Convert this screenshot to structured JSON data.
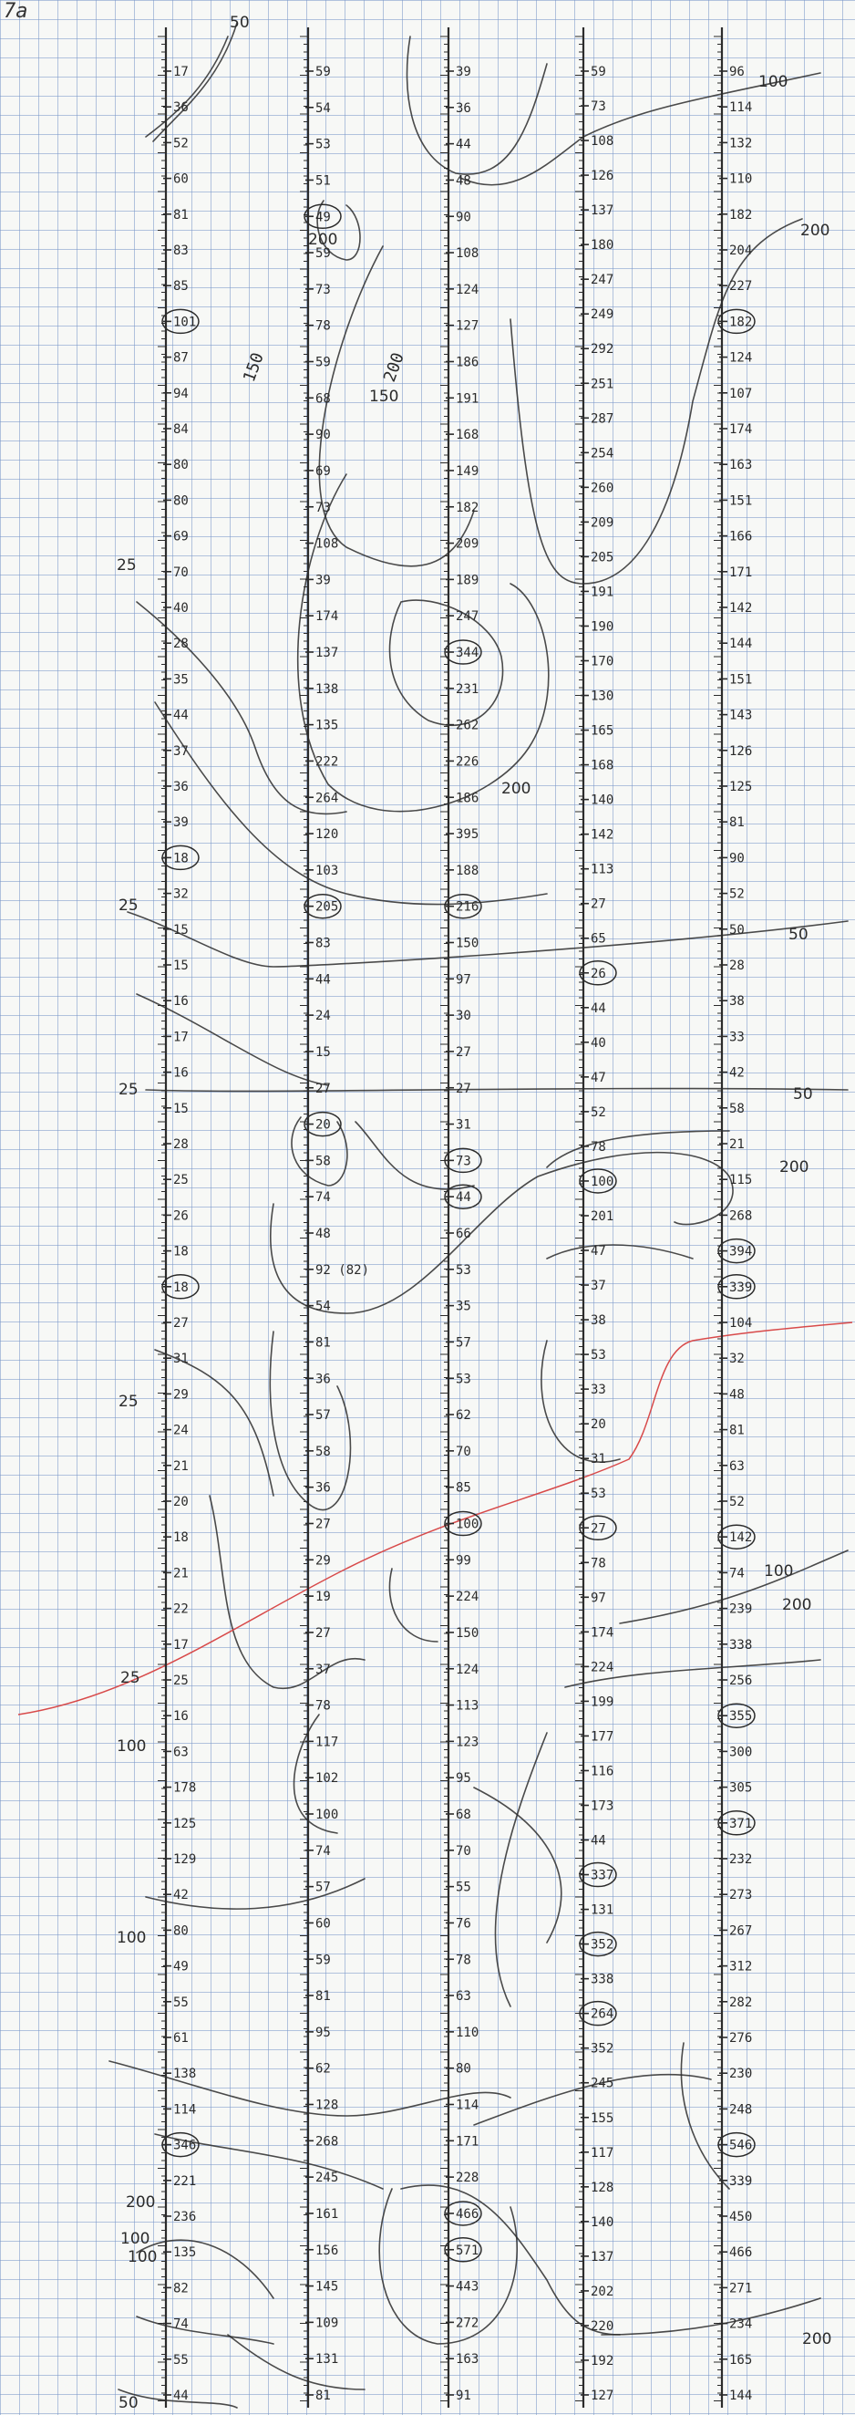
{
  "page": {
    "label": "7a",
    "ink_color": "#2b2b2b",
    "grid_color": "#7896c8",
    "paper_color": "#f7f8f6",
    "accent_line_color": "#d84a4a"
  },
  "columns": [
    {
      "readings": [
        "17",
        "36",
        "52",
        "60",
        "81",
        "83",
        "85",
        "101",
        "87",
        "94",
        "84",
        "80",
        "80",
        "69",
        "70",
        "40",
        "28",
        "35",
        "44",
        "37",
        "36",
        "39",
        "18",
        "32",
        "15",
        "15",
        "16",
        "17",
        "16",
        "15",
        "28",
        "25",
        "26",
        "18",
        "18",
        "27",
        "31",
        "29",
        "24",
        "21",
        "20",
        "18",
        "21",
        "22",
        "17",
        "25",
        "16",
        "63",
        "178",
        "125",
        "129",
        "42",
        "80",
        "49",
        "55",
        "61",
        "138",
        "114",
        "346",
        "221",
        "236",
        "135",
        "82",
        "74",
        "55",
        "44"
      ],
      "circled": [
        7,
        22,
        34,
        58
      ],
      "annotations": []
    },
    {
      "readings": [
        "59",
        "54",
        "53",
        "51",
        "49",
        "59",
        "73",
        "78",
        "59",
        "68",
        "90",
        "69",
        "73",
        "108",
        "39",
        "174",
        "137",
        "138",
        "135",
        "222",
        "264",
        "120",
        "103",
        "205",
        "83",
        "44",
        "24",
        "15",
        "27",
        "20",
        "58",
        "74",
        "48",
        "92 (82)",
        "54",
        "81",
        "36",
        "57",
        "58",
        "36",
        "27",
        "29",
        "19",
        "27",
        "37",
        "78",
        "117",
        "102",
        "100",
        "74",
        "57",
        "60",
        "59",
        "81",
        "95",
        "62",
        "128",
        "268",
        "245",
        "161",
        "156",
        "145",
        "109",
        "131",
        "81"
      ],
      "circled": [
        4,
        23,
        29
      ],
      "annotations": [
        "150"
      ]
    },
    {
      "readings": [
        "39",
        "36",
        "44",
        "48",
        "90",
        "108",
        "124",
        "127",
        "186",
        "191",
        "168",
        "149",
        "182",
        "209",
        "189",
        "247",
        "344",
        "231",
        "262",
        "226",
        "186",
        "395",
        "188",
        "216",
        "150",
        "97",
        "30",
        "27",
        "27",
        "31",
        "73",
        "44",
        "66",
        "53",
        "35",
        "57",
        "53",
        "62",
        "70",
        "85",
        "100",
        "99",
        "224",
        "150",
        "124",
        "113",
        "123",
        "95",
        "68",
        "70",
        "55",
        "76",
        "78",
        "63",
        "110",
        "80",
        "114",
        "171",
        "228",
        "466",
        "571",
        "443",
        "272",
        "163",
        "91"
      ],
      "circled": [
        16,
        23,
        30,
        31,
        40,
        59,
        60
      ],
      "annotations": [
        "200"
      ]
    },
    {
      "readings": [
        "59",
        "73",
        "108",
        "126",
        "137",
        "180",
        "247",
        "249",
        "292",
        "251",
        "287",
        "254",
        "260",
        "209",
        "205",
        "191",
        "190",
        "170",
        "130",
        "165",
        "168",
        "140",
        "142",
        "113",
        "27",
        "65",
        "26",
        "44",
        "40",
        "47",
        "52",
        "78",
        "100",
        "201",
        "47",
        "37",
        "38",
        "53",
        "33",
        "20",
        "31",
        "53",
        "27",
        "78",
        "97",
        "174",
        "224",
        "199",
        "177",
        "116",
        "173",
        "44",
        "337",
        "131",
        "352",
        "338",
        "264",
        "352",
        "245",
        "155",
        "117",
        "128",
        "140",
        "137",
        "202",
        "220",
        "192",
        "127"
      ],
      "circled": [
        26,
        32,
        42,
        52,
        54,
        56
      ],
      "annotations": []
    },
    {
      "readings": [
        "96",
        "114",
        "132",
        "110",
        "182",
        "204",
        "227",
        "182",
        "124",
        "107",
        "174",
        "163",
        "151",
        "166",
        "171",
        "142",
        "144",
        "151",
        "143",
        "126",
        "125",
        "81",
        "90",
        "52",
        "50",
        "28",
        "38",
        "33",
        "42",
        "58",
        "21",
        "115",
        "268",
        "394",
        "339",
        "104",
        "32",
        "48",
        "81",
        "63",
        "52",
        "142",
        "74",
        "239",
        "338",
        "256",
        "355",
        "300",
        "305",
        "371",
        "232",
        "273",
        "267",
        "312",
        "282",
        "276",
        "230",
        "248",
        "546",
        "339",
        "450",
        "466",
        "271",
        "234",
        "165",
        "144"
      ],
      "circled": [
        7,
        33,
        34,
        41,
        46,
        49,
        58
      ],
      "annotations": []
    }
  ],
  "contour_labels": [
    "50",
    "200",
    "150",
    "25",
    "25",
    "25",
    "100",
    "200",
    "25",
    "25",
    "200",
    "200",
    "50",
    "50",
    "100",
    "100",
    "200",
    "100",
    "100",
    "200",
    "100",
    "200",
    "50"
  ]
}
